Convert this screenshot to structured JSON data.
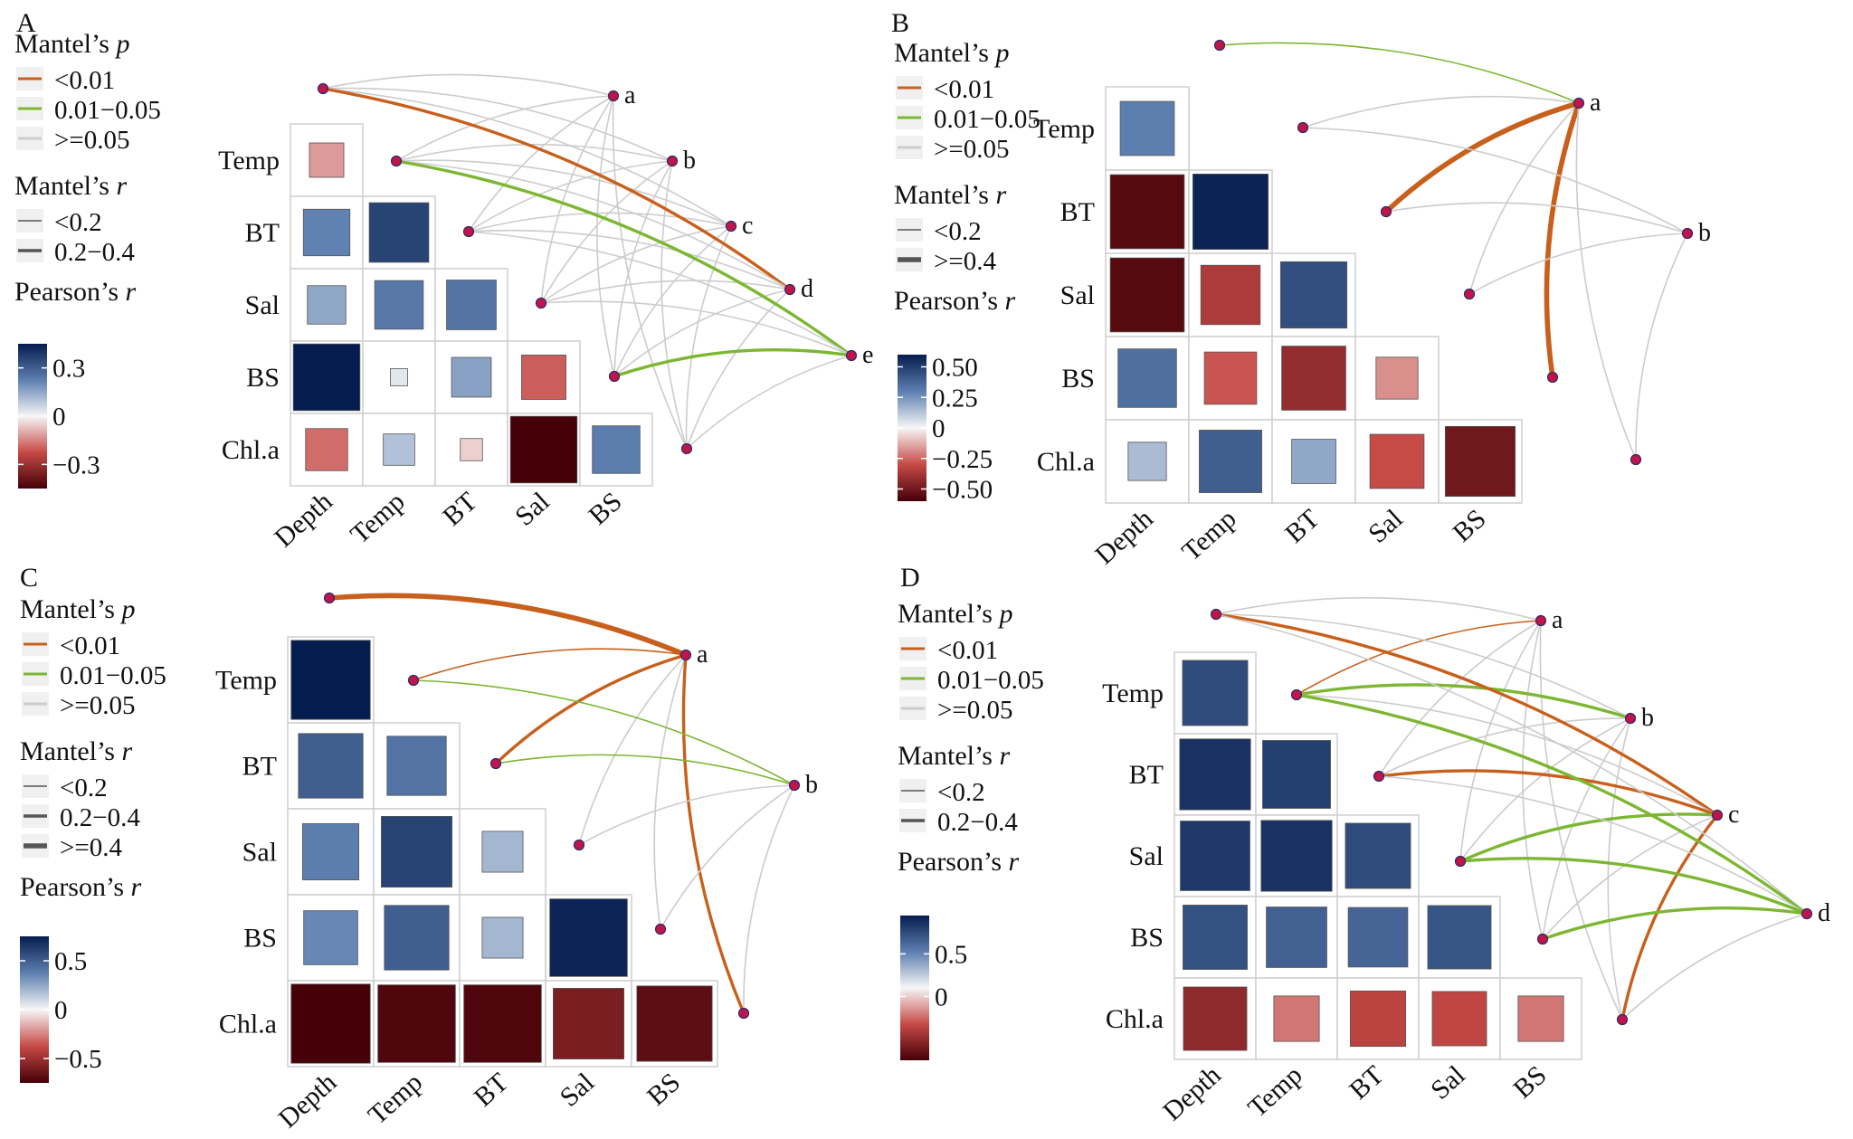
{
  "legend_labels": {
    "mantel_p_title": "Mantel’s ",
    "mantel_p_italic": "p",
    "mantel_r_title": "Mantel’s ",
    "mantel_r_italic": "r",
    "pearson_title": "Pearson’s ",
    "pearson_italic": "r"
  },
  "colors": {
    "p_lt_001": "#c8601c",
    "p_001_005": "#7cb732",
    "p_ge_005": "#cccccc",
    "node_fill": "#c0144a",
    "node_stroke": "#2b2b6b",
    "tile_border": "#cfcfcf",
    "pearson_high": "#051d4e",
    "pearson_mid": "#f6f6f6",
    "pearson_low": "#450008"
  },
  "chart_data": [
    {
      "panel": "A",
      "type": "heatmap",
      "variables": [
        "Depth",
        "Temp",
        "BT",
        "Sal",
        "BS",
        "Chl.a"
      ],
      "row_labels": [
        "Temp",
        "BT",
        "Sal",
        "BS",
        "Chl.a"
      ],
      "col_labels": [
        "Depth",
        "Temp",
        "BT",
        "Sal",
        "BS"
      ],
      "pearson_r": [
        [
          -0.12
        ],
        [
          0.22,
          0.36
        ],
        [
          0.15,
          0.24,
          0.25
        ],
        [
          0.45,
          0.03,
          0.16,
          -0.2
        ],
        [
          -0.18,
          0.1,
          -0.05,
          -0.45,
          0.23
        ]
      ],
      "colorbar": {
        "min": -0.45,
        "max": 0.45,
        "ticks": [
          0.3,
          0,
          -0.3
        ],
        "tick_labels": [
          "0.3",
          "0",
          "−0.3"
        ]
      },
      "mantel_p_legend": [
        "<0.01",
        "0.01−0.05",
        ">=0.05"
      ],
      "mantel_r_legend": [
        "<0.2",
        "0.2−0.4"
      ],
      "nodes": [
        "a",
        "b",
        "c",
        "d",
        "e"
      ],
      "links": [
        {
          "node": "a",
          "var": "Depth",
          "p": ">=0.05",
          "r": "<0.2"
        },
        {
          "node": "a",
          "var": "Temp",
          "p": ">=0.05",
          "r": "<0.2"
        },
        {
          "node": "a",
          "var": "BT",
          "p": ">=0.05",
          "r": "<0.2"
        },
        {
          "node": "a",
          "var": "Sal",
          "p": ">=0.05",
          "r": "<0.2"
        },
        {
          "node": "a",
          "var": "BS",
          "p": ">=0.05",
          "r": "<0.2"
        },
        {
          "node": "a",
          "var": "Chl.a",
          "p": ">=0.05",
          "r": "<0.2"
        },
        {
          "node": "b",
          "var": "Depth",
          "p": ">=0.05",
          "r": "<0.2"
        },
        {
          "node": "b",
          "var": "Temp",
          "p": ">=0.05",
          "r": "<0.2"
        },
        {
          "node": "b",
          "var": "BT",
          "p": ">=0.05",
          "r": "<0.2"
        },
        {
          "node": "b",
          "var": "Sal",
          "p": ">=0.05",
          "r": "<0.2"
        },
        {
          "node": "b",
          "var": "BS",
          "p": ">=0.05",
          "r": "<0.2"
        },
        {
          "node": "b",
          "var": "Chl.a",
          "p": ">=0.05",
          "r": "<0.2"
        },
        {
          "node": "c",
          "var": "Depth",
          "p": ">=0.05",
          "r": "<0.2"
        },
        {
          "node": "c",
          "var": "Temp",
          "p": ">=0.05",
          "r": "<0.2"
        },
        {
          "node": "c",
          "var": "BT",
          "p": ">=0.05",
          "r": "<0.2"
        },
        {
          "node": "c",
          "var": "Sal",
          "p": ">=0.05",
          "r": "<0.2"
        },
        {
          "node": "c",
          "var": "BS",
          "p": ">=0.05",
          "r": "<0.2"
        },
        {
          "node": "c",
          "var": "Chl.a",
          "p": ">=0.05",
          "r": "<0.2"
        },
        {
          "node": "d",
          "var": "Depth",
          "p": "<0.01",
          "r": "0.2−0.4"
        },
        {
          "node": "d",
          "var": "Temp",
          "p": ">=0.05",
          "r": "<0.2"
        },
        {
          "node": "d",
          "var": "BT",
          "p": ">=0.05",
          "r": "<0.2"
        },
        {
          "node": "d",
          "var": "Sal",
          "p": ">=0.05",
          "r": "<0.2"
        },
        {
          "node": "d",
          "var": "BS",
          "p": ">=0.05",
          "r": "<0.2"
        },
        {
          "node": "d",
          "var": "Chl.a",
          "p": ">=0.05",
          "r": "<0.2"
        },
        {
          "node": "e",
          "var": "Temp",
          "p": "0.01−0.05",
          "r": "0.2−0.4"
        },
        {
          "node": "e",
          "var": "BT",
          "p": ">=0.05",
          "r": "<0.2"
        },
        {
          "node": "e",
          "var": "Sal",
          "p": ">=0.05",
          "r": "<0.2"
        },
        {
          "node": "e",
          "var": "BS",
          "p": "0.01−0.05",
          "r": "0.2−0.4"
        },
        {
          "node": "e",
          "var": "Chl.a",
          "p": ">=0.05",
          "r": "<0.2"
        }
      ]
    },
    {
      "panel": "B",
      "type": "heatmap",
      "variables": [
        "Depth",
        "Temp",
        "BT",
        "Sal",
        "BS",
        "Chl.a"
      ],
      "row_labels": [
        "Temp",
        "BT",
        "Sal",
        "BS",
        "Chl.a"
      ],
      "col_labels": [
        "Depth",
        "Temp",
        "BT",
        "Sal",
        "BS"
      ],
      "pearson_r": [
        [
          0.3
        ],
        [
          -0.56,
          0.58
        ],
        [
          -0.56,
          -0.36,
          0.45
        ],
        [
          0.35,
          -0.28,
          -0.42,
          -0.18
        ],
        [
          0.15,
          0.4,
          0.2,
          -0.3,
          -0.5
        ]
      ],
      "colorbar": {
        "min": -0.6,
        "max": 0.6,
        "ticks": [
          0.5,
          0.25,
          0,
          -0.25,
          -0.5
        ],
        "tick_labels": [
          "0.50",
          "0.25",
          "0",
          "−0.25",
          "−0.50"
        ]
      },
      "mantel_p_legend": [
        "<0.01",
        "0.01−0.05",
        ">=0.05"
      ],
      "mantel_r_legend": [
        "<0.2",
        ">=0.4"
      ],
      "nodes": [
        "a",
        "b"
      ],
      "links": [
        {
          "node": "a",
          "var": "Depth",
          "p": "0.01−0.05",
          "r": "<0.2"
        },
        {
          "node": "a",
          "var": "Temp",
          "p": ">=0.05",
          "r": "<0.2"
        },
        {
          "node": "a",
          "var": "BT",
          "p": "<0.01",
          "r": ">=0.4"
        },
        {
          "node": "a",
          "var": "Sal",
          "p": ">=0.05",
          "r": "<0.2"
        },
        {
          "node": "a",
          "var": "BS",
          "p": "<0.01",
          "r": ">=0.4"
        },
        {
          "node": "a",
          "var": "Chl.a",
          "p": ">=0.05",
          "r": "<0.2"
        },
        {
          "node": "b",
          "var": "Temp",
          "p": ">=0.05",
          "r": "<0.2"
        },
        {
          "node": "b",
          "var": "BT",
          "p": ">=0.05",
          "r": "<0.2"
        },
        {
          "node": "b",
          "var": "Sal",
          "p": ">=0.05",
          "r": "<0.2"
        },
        {
          "node": "b",
          "var": "Chl.a",
          "p": ">=0.05",
          "r": "<0.2"
        }
      ]
    },
    {
      "panel": "C",
      "type": "heatmap",
      "variables": [
        "Depth",
        "Temp",
        "BT",
        "Sal",
        "BS",
        "Chl.a"
      ],
      "row_labels": [
        "Temp",
        "BT",
        "Sal",
        "BS",
        "Chl.a"
      ],
      "col_labels": [
        "Depth",
        "Temp",
        "BT",
        "Sal",
        "BS"
      ],
      "pearson_r": [
        [
          0.75
        ],
        [
          0.5,
          0.42
        ],
        [
          0.38,
          0.6,
          0.2
        ],
        [
          0.35,
          0.5,
          0.2,
          0.72
        ],
        [
          -0.75,
          -0.72,
          -0.72,
          -0.6,
          -0.68
        ]
      ],
      "colorbar": {
        "min": -0.75,
        "max": 0.75,
        "ticks": [
          0.5,
          0,
          -0.5
        ],
        "tick_labels": [
          "0.5",
          "0",
          "−0.5"
        ]
      },
      "mantel_p_legend": [
        "<0.01",
        "0.01−0.05",
        ">=0.05"
      ],
      "mantel_r_legend": [
        "<0.2",
        "0.2−0.4",
        ">=0.4"
      ],
      "nodes": [
        "a",
        "b"
      ],
      "links": [
        {
          "node": "a",
          "var": "Depth",
          "p": "<0.01",
          "r": ">=0.4"
        },
        {
          "node": "a",
          "var": "Temp",
          "p": "<0.01",
          "r": "<0.2"
        },
        {
          "node": "a",
          "var": "BT",
          "p": "<0.01",
          "r": "0.2−0.4"
        },
        {
          "node": "a",
          "var": "Sal",
          "p": ">=0.05",
          "r": "<0.2"
        },
        {
          "node": "a",
          "var": "BS",
          "p": ">=0.05",
          "r": "<0.2"
        },
        {
          "node": "a",
          "var": "Chl.a",
          "p": "<0.01",
          "r": "0.2−0.4"
        },
        {
          "node": "b",
          "var": "Temp",
          "p": "0.01−0.05",
          "r": "<0.2"
        },
        {
          "node": "b",
          "var": "BT",
          "p": "0.01−0.05",
          "r": "<0.2"
        },
        {
          "node": "b",
          "var": "Sal",
          "p": ">=0.05",
          "r": "<0.2"
        },
        {
          "node": "b",
          "var": "BS",
          "p": ">=0.05",
          "r": "<0.2"
        },
        {
          "node": "b",
          "var": "Chl.a",
          "p": ">=0.05",
          "r": "<0.2"
        }
      ]
    },
    {
      "panel": "D",
      "type": "heatmap",
      "variables": [
        "Depth",
        "Temp",
        "BT",
        "Sal",
        "BS",
        "Chl.a"
      ],
      "row_labels": [
        "Temp",
        "BT",
        "Sal",
        "BS",
        "Chl.a"
      ],
      "col_labels": [
        "Depth",
        "Temp",
        "BT",
        "Sal",
        "BS"
      ],
      "pearson_r": [
        [
          0.72
        ],
        [
          0.85,
          0.78
        ],
        [
          0.82,
          0.85,
          0.72
        ],
        [
          0.7,
          0.62,
          0.6,
          0.68
        ],
        [
          -0.68,
          -0.35,
          -0.52,
          -0.5,
          -0.35
        ]
      ],
      "colorbar": {
        "min": -0.75,
        "max": 0.95,
        "ticks": [
          0.5,
          0
        ],
        "tick_labels": [
          "0.5",
          "0"
        ]
      },
      "mantel_p_legend": [
        "<0.01",
        "0.01−0.05",
        ">=0.05"
      ],
      "mantel_r_legend": [
        "<0.2",
        "0.2−0.4"
      ],
      "nodes": [
        "a",
        "b",
        "c",
        "d"
      ],
      "links": [
        {
          "node": "a",
          "var": "Depth",
          "p": ">=0.05",
          "r": "<0.2"
        },
        {
          "node": "a",
          "var": "Temp",
          "p": "<0.01",
          "r": "<0.2"
        },
        {
          "node": "a",
          "var": "BT",
          "p": ">=0.05",
          "r": "<0.2"
        },
        {
          "node": "a",
          "var": "Sal",
          "p": ">=0.05",
          "r": "<0.2"
        },
        {
          "node": "a",
          "var": "BS",
          "p": ">=0.05",
          "r": "<0.2"
        },
        {
          "node": "a",
          "var": "Chl.a",
          "p": ">=0.05",
          "r": "<0.2"
        },
        {
          "node": "b",
          "var": "Depth",
          "p": ">=0.05",
          "r": "<0.2"
        },
        {
          "node": "b",
          "var": "Temp",
          "p": "0.01−0.05",
          "r": "0.2−0.4"
        },
        {
          "node": "b",
          "var": "BT",
          "p": ">=0.05",
          "r": "<0.2"
        },
        {
          "node": "b",
          "var": "Sal",
          "p": ">=0.05",
          "r": "<0.2"
        },
        {
          "node": "b",
          "var": "BS",
          "p": ">=0.05",
          "r": "<0.2"
        },
        {
          "node": "b",
          "var": "Chl.a",
          "p": ">=0.05",
          "r": "<0.2"
        },
        {
          "node": "c",
          "var": "Depth",
          "p": "<0.01",
          "r": "0.2−0.4"
        },
        {
          "node": "c",
          "var": "Temp",
          "p": ">=0.05",
          "r": "<0.2"
        },
        {
          "node": "c",
          "var": "BT",
          "p": "<0.01",
          "r": "0.2−0.4"
        },
        {
          "node": "c",
          "var": "Sal",
          "p": "0.01−0.05",
          "r": "0.2−0.4"
        },
        {
          "node": "c",
          "var": "BS",
          "p": ">=0.05",
          "r": "<0.2"
        },
        {
          "node": "c",
          "var": "Chl.a",
          "p": "<0.01",
          "r": "0.2−0.4"
        },
        {
          "node": "d",
          "var": "Depth",
          "p": ">=0.05",
          "r": "<0.2"
        },
        {
          "node": "d",
          "var": "Temp",
          "p": "0.01−0.05",
          "r": "0.2−0.4"
        },
        {
          "node": "d",
          "var": "BT",
          "p": ">=0.05",
          "r": "<0.2"
        },
        {
          "node": "d",
          "var": "Sal",
          "p": "0.01−0.05",
          "r": "0.2−0.4"
        },
        {
          "node": "d",
          "var": "BS",
          "p": "0.01−0.05",
          "r": "0.2−0.4"
        },
        {
          "node": "d",
          "var": "Chl.a",
          "p": ">=0.05",
          "r": "<0.2"
        }
      ]
    }
  ]
}
